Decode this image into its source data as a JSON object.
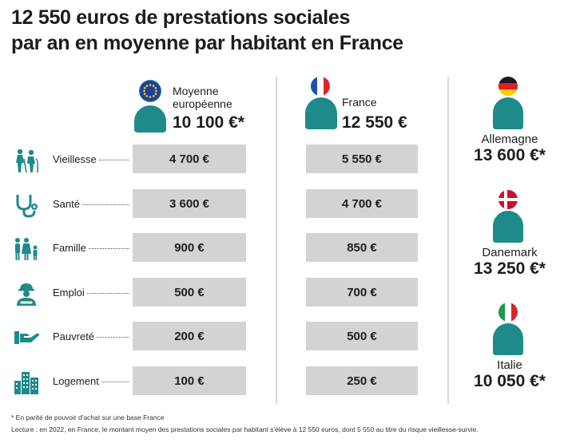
{
  "title": {
    "line1": "12 550 euros de prestations sociales",
    "line2": "par an en moyenne par habitant en France"
  },
  "columns": {
    "eu": {
      "label_line1": "Moyenne",
      "label_line2": "européenne",
      "value": "10 100 €*"
    },
    "france": {
      "label": "France",
      "value": "12 550 €"
    }
  },
  "categories": [
    {
      "label": "Vieillesse",
      "icon": "elderly-couple-icon",
      "eu": "4 700 €",
      "france": "5 550 €"
    },
    {
      "label": "Santé",
      "icon": "stethoscope-icon",
      "eu": "3 600 €",
      "france": "4 700 €"
    },
    {
      "label": "Famille",
      "icon": "family-icon",
      "eu": "900 €",
      "france": "850 €"
    },
    {
      "label": "Emploi",
      "icon": "worker-icon",
      "eu": "500 €",
      "france": "700 €"
    },
    {
      "label": "Pauvreté",
      "icon": "helping-hand-icon",
      "eu": "200 €",
      "france": "500 €"
    },
    {
      "label": "Logement",
      "icon": "buildings-icon",
      "eu": "100 €",
      "france": "250 €"
    }
  ],
  "countries": [
    {
      "name": "Allemagne",
      "value": "13 600 €*",
      "flag": "germany-flag-icon"
    },
    {
      "name": "Danemark",
      "value": "13 250 €*",
      "flag": "denmark-flag-icon"
    },
    {
      "name": "Italie",
      "value": "10 050 €*",
      "flag": "italy-flag-icon"
    }
  ],
  "footnotes": {
    "note": "* En parité de pouvoir d'achat sur une base France",
    "reading": "Lecture : en 2022, en France, le montant moyen des prestations sociales par habitant s'élève à 12 550 euros, dont 5 550 au titre du risque vieillesse-survie."
  },
  "colors": {
    "accent": "#1f8a8a",
    "cell": "#d3d3d3",
    "divider": "#d9d9d9"
  },
  "chart_data": {
    "type": "table",
    "title": "12 550 euros de prestations sociales par an en moyenne par habitant en France",
    "categories": [
      "Vieillesse",
      "Santé",
      "Famille",
      "Emploi",
      "Pauvreté",
      "Logement"
    ],
    "series": [
      {
        "name": "Moyenne européenne",
        "values": [
          4700,
          3600,
          900,
          500,
          200,
          100
        ],
        "total": 10100
      },
      {
        "name": "France",
        "values": [
          5550,
          4700,
          850,
          700,
          500,
          250
        ],
        "total": 12550
      }
    ],
    "country_totals": [
      {
        "name": "Allemagne",
        "value": 13600
      },
      {
        "name": "Danemark",
        "value": 13250
      },
      {
        "name": "Italie",
        "value": 10050
      }
    ],
    "unit": "€"
  }
}
